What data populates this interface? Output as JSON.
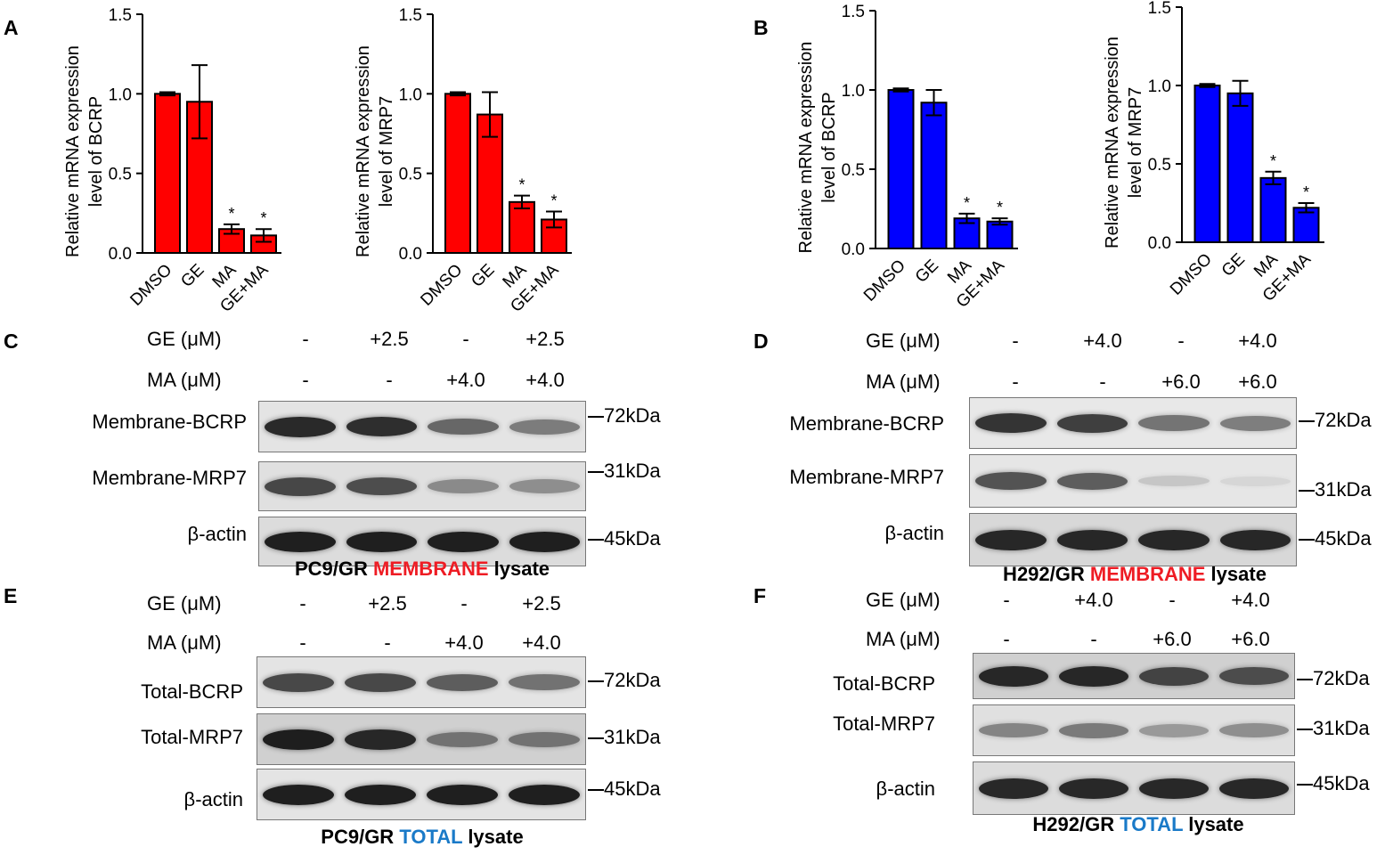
{
  "panel_labels": {
    "A": "A",
    "B": "B",
    "C": "C",
    "D": "D",
    "E": "E",
    "F": "F"
  },
  "chart_data": [
    {
      "type": "bar",
      "id": "A1",
      "categories": [
        "DMSO",
        "GE",
        "MA",
        "GE+MA"
      ],
      "values": [
        1.0,
        0.95,
        0.15,
        0.11
      ],
      "errors": [
        0.01,
        0.23,
        0.03,
        0.04
      ],
      "significance": [
        "",
        "",
        "*",
        "*"
      ],
      "ylabel": [
        "Relative mRNA expression",
        "level of BCRP"
      ],
      "ylim": [
        0,
        1.5
      ],
      "yticks": [
        "0.0",
        "0.5",
        "1.0",
        "1.5"
      ],
      "color": "#ff0000"
    },
    {
      "type": "bar",
      "id": "A2",
      "categories": [
        "DMSO",
        "GE",
        "MA",
        "GE+MA"
      ],
      "values": [
        1.0,
        0.87,
        0.32,
        0.21
      ],
      "errors": [
        0.01,
        0.14,
        0.04,
        0.05
      ],
      "significance": [
        "",
        "",
        "*",
        "*"
      ],
      "ylabel": [
        "Relative mRNA expression",
        "level of MRP7"
      ],
      "ylim": [
        0,
        1.5
      ],
      "yticks": [
        "0.0",
        "0.5",
        "1.0",
        "1.5"
      ],
      "color": "#ff0000"
    },
    {
      "type": "bar",
      "id": "B1",
      "categories": [
        "DMSO",
        "GE",
        "MA",
        "GE+MA"
      ],
      "values": [
        1.0,
        0.92,
        0.19,
        0.17
      ],
      "errors": [
        0.01,
        0.08,
        0.03,
        0.02
      ],
      "significance": [
        "",
        "",
        "*",
        "*"
      ],
      "ylabel": [
        "Relative mRNA expression",
        "level of BCRP"
      ],
      "ylim": [
        0,
        1.5
      ],
      "yticks": [
        "0.0",
        "0.5",
        "1.0",
        "1.5"
      ],
      "color": "#0000ff"
    },
    {
      "type": "bar",
      "id": "B2",
      "categories": [
        "DMSO",
        "GE",
        "MA",
        "GE+MA"
      ],
      "values": [
        1.0,
        0.95,
        0.41,
        0.22
      ],
      "errors": [
        0.01,
        0.08,
        0.04,
        0.03
      ],
      "significance": [
        "",
        "",
        "*",
        "*"
      ],
      "ylabel": [
        "Relative mRNA expression",
        "level of MRP7"
      ],
      "ylim": [
        0,
        1.5
      ],
      "yticks": [
        "0.0",
        "0.5",
        "1.0",
        "1.5"
      ],
      "color": "#0000ff"
    }
  ],
  "western_blots": {
    "C": {
      "ge_label": "GE  (μM)",
      "ma_label": "MA (μM)",
      "ge_values": [
        "-",
        "+2.5",
        "-",
        "+2.5"
      ],
      "ma_values": [
        "-",
        "-",
        "+4.0",
        "+4.0"
      ],
      "rows": [
        "Membrane-BCRP",
        "Membrane-MRP7",
        "β-actin"
      ],
      "sizes": [
        "72kDa",
        "31kDa",
        "45kDa"
      ],
      "caption": {
        "pre": "PC9/GR ",
        "highlight": "MEMBRANE",
        "post": " lysate"
      },
      "band_intensity": [
        [
          0.9,
          0.88,
          0.6,
          0.5
        ],
        [
          0.75,
          0.72,
          0.42,
          0.4
        ],
        [
          0.95,
          0.95,
          0.95,
          0.95
        ]
      ]
    },
    "D": {
      "ge_label": "GE  (μM)",
      "ma_label": "MA (μM)",
      "ge_values": [
        "-",
        "+4.0",
        "-",
        "+4.0"
      ],
      "ma_values": [
        "-",
        "-",
        "+6.0",
        "+6.0"
      ],
      "rows": [
        "Membrane-BCRP",
        "Membrane-MRP7",
        "β-actin"
      ],
      "sizes": [
        "72kDa",
        "31kDa",
        "45kDa"
      ],
      "caption": {
        "pre": "H292/GR ",
        "highlight": "MEMBRANE",
        "post": " lysate"
      },
      "band_intensity": [
        [
          0.85,
          0.8,
          0.55,
          0.5
        ],
        [
          0.7,
          0.65,
          0.15,
          0.08
        ],
        [
          0.9,
          0.9,
          0.9,
          0.9
        ]
      ]
    },
    "E": {
      "ge_label": "GE  (μM)",
      "ma_label": "MA (μM)",
      "ge_values": [
        "-",
        "+2.5",
        "-",
        "+2.5"
      ],
      "ma_values": [
        "-",
        "-",
        "+4.0",
        "+4.0"
      ],
      "rows": [
        "Total-BCRP",
        "Total-MRP7",
        "β-actin"
      ],
      "sizes": [
        "72kDa",
        "31kDa",
        "45kDa"
      ],
      "caption": {
        "pre": "PC9/GR ",
        "highlight": "TOTAL",
        "post": " lysate"
      },
      "band_intensity": [
        [
          0.75,
          0.75,
          0.65,
          0.55
        ],
        [
          0.95,
          0.9,
          0.5,
          0.5
        ],
        [
          0.95,
          0.95,
          0.95,
          0.95
        ]
      ]
    },
    "F": {
      "ge_label": "GE  (μM)",
      "ma_label": "MA (μM)",
      "ge_values": [
        "-",
        "+4.0",
        "-",
        "+4.0"
      ],
      "ma_values": [
        "-",
        "-",
        "+6.0",
        "+6.0"
      ],
      "rows": [
        "Total-BCRP",
        "Total-MRP7",
        "β-actin"
      ],
      "sizes": [
        "72kDa",
        "31kDa",
        "45kDa"
      ],
      "caption": {
        "pre": "H292/GR ",
        "highlight": "TOTAL",
        "post": " lysate"
      },
      "band_intensity": [
        [
          0.9,
          0.9,
          0.75,
          0.7
        ],
        [
          0.45,
          0.5,
          0.35,
          0.4
        ],
        [
          0.9,
          0.9,
          0.9,
          0.9
        ]
      ]
    }
  }
}
